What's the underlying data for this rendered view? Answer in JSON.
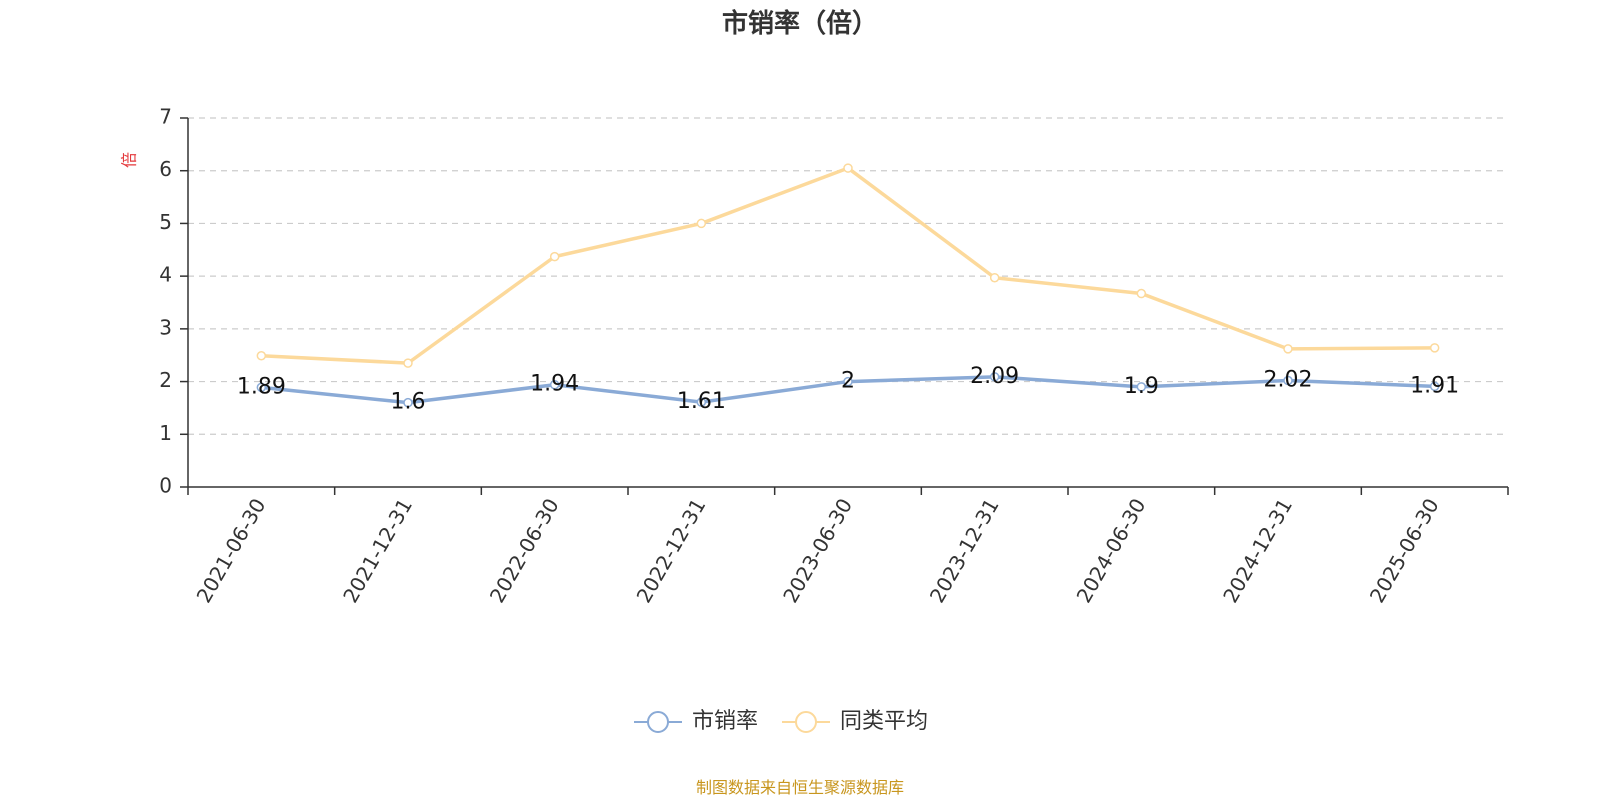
{
  "chart_data": {
    "type": "line",
    "title": "市销率（倍）",
    "xlabel": "",
    "ylabel": "倍",
    "ylim": [
      0,
      7
    ],
    "y_ticks": [
      0,
      1,
      2,
      3,
      4,
      5,
      6,
      7
    ],
    "grid": true,
    "legend_position": "bottom",
    "categories": [
      "2021-06-30",
      "2021-12-31",
      "2022-06-30",
      "2022-12-31",
      "2023-06-30",
      "2023-12-31",
      "2024-06-30",
      "2024-12-31",
      "2025-06-30"
    ],
    "series": [
      {
        "name": "市销率",
        "color": "#8aaad6",
        "values": [
          1.89,
          1.6,
          1.94,
          1.61,
          2,
          2.09,
          1.9,
          2.02,
          1.91
        ],
        "show_labels": true
      },
      {
        "name": "同类平均",
        "color": "#fcd99b",
        "values": [
          2.49,
          2.35,
          4.37,
          5.0,
          6.05,
          3.97,
          3.67,
          2.62,
          2.64
        ],
        "show_labels": false
      }
    ]
  },
  "footer": {
    "source": "制图数据来自恒生聚源数据库"
  }
}
